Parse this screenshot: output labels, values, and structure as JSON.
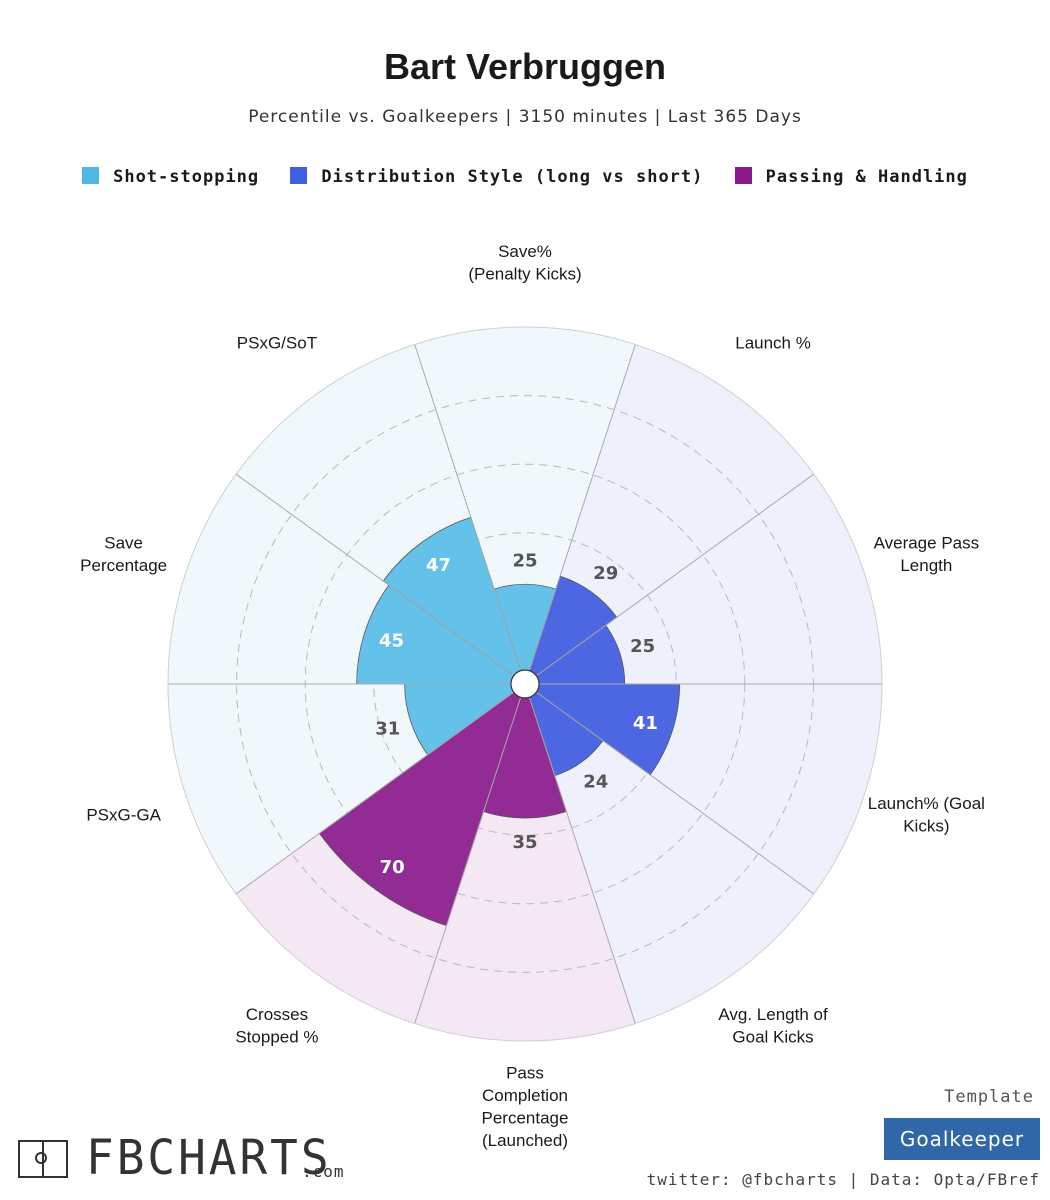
{
  "title": "Bart Verbruggen",
  "subtitle": "Percentile vs. Goalkeepers | 3150 minutes | Last 365 Days",
  "legend": [
    {
      "label": "Shot-stopping",
      "color": "#4fb8e3"
    },
    {
      "label": "Distribution Style (long vs short)",
      "color": "#3f5ee0"
    },
    {
      "label": "Passing & Handling",
      "color": "#8a1a8a"
    }
  ],
  "footer": {
    "logo_text": "FBCHARTS",
    "logo_suffix": ".com",
    "template_label": "Template",
    "template_name": "Goalkeeper",
    "credit": "twitter: @fbcharts | Data: Opta/FBref"
  },
  "chart_data": {
    "type": "radar",
    "rlim": [
      0,
      100
    ],
    "categories": [
      {
        "name": "Shot-stopping",
        "fill": "#63c1ea",
        "background": "#f1f8fb",
        "label_color": "#ffffff"
      },
      {
        "name": "Distribution Style (long vs short)",
        "fill": "#4d67e2",
        "background": "#eef0fb",
        "label_color": "#ffffff"
      },
      {
        "name": "Passing & Handling",
        "fill": "#922b94",
        "background": "#f4e8f4",
        "label_color": "#ffffff"
      }
    ],
    "metrics": [
      {
        "label": [
          "Save%",
          "(Penalty Kicks)"
        ],
        "value": 25,
        "category": 0
      },
      {
        "label": [
          "Launch %"
        ],
        "value": 29,
        "category": 1
      },
      {
        "label": [
          "Average Pass",
          "Length"
        ],
        "value": 25,
        "category": 1
      },
      {
        "label": [
          "Launch% (Goal",
          "Kicks)"
        ],
        "value": 41,
        "category": 1
      },
      {
        "label": [
          "Avg. Length of",
          "Goal Kicks"
        ],
        "value": 24,
        "category": 1
      },
      {
        "label": [
          "Pass",
          "Completion",
          "Percentage",
          "(Launched)"
        ],
        "value": 35,
        "category": 2
      },
      {
        "label": [
          "Crosses",
          "Stopped %"
        ],
        "value": 70,
        "category": 2
      },
      {
        "label": [
          "PSxG-GA"
        ],
        "value": 31,
        "category": 0
      },
      {
        "label": [
          "Save",
          "Percentage"
        ],
        "value": 45,
        "category": 0
      },
      {
        "label": [
          "PSxG/SoT"
        ],
        "value": 47,
        "category": 0
      }
    ],
    "grid_rings": [
      20,
      40,
      60,
      80
    ]
  }
}
